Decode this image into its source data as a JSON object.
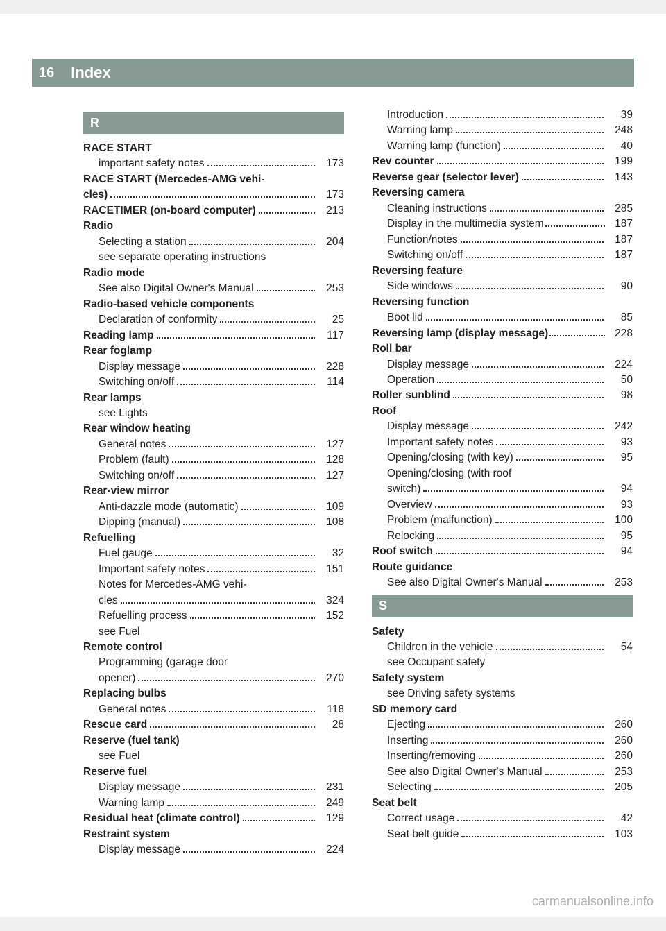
{
  "header": {
    "page_num": "16",
    "title": "Index"
  },
  "colors": {
    "bar_bg": "#889a94",
    "bar_fg": "#ffffff",
    "text": "#222222",
    "page_bg": "#ffffff"
  },
  "watermark": "carmanualsonline.info",
  "sections": {
    "R": {
      "letter": "R"
    },
    "S": {
      "letter": "S"
    }
  },
  "left_col": [
    {
      "type": "section",
      "key": "R"
    },
    {
      "label": "RACE START",
      "bold": true,
      "nonum": true
    },
    {
      "label": "important safety notes",
      "sub": true,
      "page": "173"
    },
    {
      "label": "RACE START (Mercedes-AMG vehi-",
      "bold": true,
      "nonum": true,
      "cont": true
    },
    {
      "label": "cles)",
      "bold": true,
      "page": "173"
    },
    {
      "label": "RACETIMER (on-board computer)",
      "bold": true,
      "page": "213"
    },
    {
      "label": "Radio",
      "bold": true,
      "nonum": true
    },
    {
      "label": "Selecting a station",
      "sub": true,
      "page": "204"
    },
    {
      "label": "see separate operating instructions",
      "sub": true,
      "nonum": true
    },
    {
      "label": "Radio mode",
      "bold": true,
      "nonum": true
    },
    {
      "label": "See also Digital Owner's Manual",
      "sub": true,
      "page": "253"
    },
    {
      "label": "Radio-based vehicle components",
      "bold": true,
      "nonum": true
    },
    {
      "label": "Declaration of conformity",
      "sub": true,
      "page": "25"
    },
    {
      "label": "Reading lamp",
      "bold": true,
      "page": "117"
    },
    {
      "label": "Rear foglamp",
      "bold": true,
      "nonum": true
    },
    {
      "label": "Display message",
      "sub": true,
      "page": "228"
    },
    {
      "label": "Switching on/off",
      "sub": true,
      "page": "114"
    },
    {
      "label": "Rear lamps",
      "bold": true,
      "nonum": true
    },
    {
      "label": "see Lights",
      "sub": true,
      "nonum": true
    },
    {
      "label": "Rear window heating",
      "bold": true,
      "nonum": true
    },
    {
      "label": "General notes",
      "sub": true,
      "page": "127"
    },
    {
      "label": "Problem (fault)",
      "sub": true,
      "page": "128"
    },
    {
      "label": "Switching on/off",
      "sub": true,
      "page": "127"
    },
    {
      "label": "Rear-view mirror",
      "bold": true,
      "nonum": true
    },
    {
      "label": "Anti-dazzle mode (automatic)",
      "sub": true,
      "page": "109"
    },
    {
      "label": "Dipping (manual)",
      "sub": true,
      "page": "108"
    },
    {
      "label": "Refuelling",
      "bold": true,
      "nonum": true
    },
    {
      "label": "Fuel gauge",
      "sub": true,
      "page": "32"
    },
    {
      "label": "Important safety notes",
      "sub": true,
      "page": "151"
    },
    {
      "label": "Notes for Mercedes-AMG vehi-",
      "sub": true,
      "nonum": true,
      "cont": true
    },
    {
      "label": "cles",
      "sub": true,
      "page": "324"
    },
    {
      "label": "Refuelling process",
      "sub": true,
      "page": "152"
    },
    {
      "label": "see Fuel",
      "sub": true,
      "nonum": true
    },
    {
      "label": "Remote control",
      "bold": true,
      "nonum": true
    },
    {
      "label": "Programming (garage door",
      "sub": true,
      "nonum": true,
      "cont": true
    },
    {
      "label": "opener)",
      "sub": true,
      "page": "270"
    },
    {
      "label": "Replacing bulbs",
      "bold": true,
      "nonum": true
    },
    {
      "label": "General notes",
      "sub": true,
      "page": "118"
    },
    {
      "label": "Rescue card",
      "bold": true,
      "page": "28"
    },
    {
      "label": "Reserve (fuel tank)",
      "bold": true,
      "nonum": true
    },
    {
      "label": "see Fuel",
      "sub": true,
      "nonum": true
    },
    {
      "label": "Reserve fuel",
      "bold": true,
      "nonum": true
    },
    {
      "label": "Display message",
      "sub": true,
      "page": "231"
    },
    {
      "label": "Warning lamp",
      "sub": true,
      "page": "249"
    },
    {
      "label": "Residual heat (climate control)",
      "bold": true,
      "page": "129"
    },
    {
      "label": "Restraint system",
      "bold": true,
      "nonum": true
    },
    {
      "label": "Display message",
      "sub": true,
      "page": "224"
    }
  ],
  "right_col": [
    {
      "label": "Introduction",
      "sub": true,
      "page": "39"
    },
    {
      "label": "Warning lamp",
      "sub": true,
      "page": "248"
    },
    {
      "label": "Warning lamp (function)",
      "sub": true,
      "page": "40"
    },
    {
      "label": "Rev counter",
      "bold": true,
      "page": "199"
    },
    {
      "label": "Reverse gear (selector lever)",
      "bold": true,
      "page": "143"
    },
    {
      "label": "Reversing camera",
      "bold": true,
      "nonum": true
    },
    {
      "label": "Cleaning instructions",
      "sub": true,
      "page": "285"
    },
    {
      "label": "Display in the multimedia system",
      "sub": true,
      "page": "187",
      "tight": true
    },
    {
      "label": "Function/notes",
      "sub": true,
      "page": "187"
    },
    {
      "label": "Switching on/off",
      "sub": true,
      "page": "187"
    },
    {
      "label": "Reversing feature",
      "bold": true,
      "nonum": true
    },
    {
      "label": "Side windows",
      "sub": true,
      "page": "90"
    },
    {
      "label": "Reversing function",
      "bold": true,
      "nonum": true
    },
    {
      "label": "Boot lid",
      "sub": true,
      "page": "85"
    },
    {
      "label": "Reversing lamp (display message)",
      "bold": true,
      "page": "228",
      "tight": true
    },
    {
      "label": "Roll bar",
      "bold": true,
      "nonum": true
    },
    {
      "label": "Display message",
      "sub": true,
      "page": "224"
    },
    {
      "label": "Operation",
      "sub": true,
      "page": "50"
    },
    {
      "label": "Roller sunblind",
      "bold": true,
      "page": "98"
    },
    {
      "label": "Roof",
      "bold": true,
      "nonum": true
    },
    {
      "label": "Display message",
      "sub": true,
      "page": "242"
    },
    {
      "label": "Important safety notes",
      "sub": true,
      "page": "93"
    },
    {
      "label": "Opening/closing (with key)",
      "sub": true,
      "page": "95"
    },
    {
      "label": "Opening/closing (with roof",
      "sub": true,
      "nonum": true,
      "cont": true
    },
    {
      "label": "switch)",
      "sub": true,
      "page": "94"
    },
    {
      "label": "Overview",
      "sub": true,
      "page": "93"
    },
    {
      "label": "Problem (malfunction)",
      "sub": true,
      "page": "100"
    },
    {
      "label": "Relocking",
      "sub": true,
      "page": "95"
    },
    {
      "label": "Roof switch",
      "bold": true,
      "page": "94"
    },
    {
      "label": "Route guidance",
      "bold": true,
      "nonum": true
    },
    {
      "label": "See also Digital Owner's Manual",
      "sub": true,
      "page": "253"
    },
    {
      "type": "section",
      "key": "S"
    },
    {
      "label": "Safety",
      "bold": true,
      "nonum": true
    },
    {
      "label": "Children in the vehicle",
      "sub": true,
      "page": "54"
    },
    {
      "label": "see Occupant safety",
      "sub": true,
      "nonum": true
    },
    {
      "label": "Safety system",
      "bold": true,
      "nonum": true
    },
    {
      "label": "see Driving safety systems",
      "sub": true,
      "nonum": true
    },
    {
      "label": "SD memory card",
      "bold": true,
      "nonum": true
    },
    {
      "label": "Ejecting",
      "sub": true,
      "page": "260"
    },
    {
      "label": "Inserting",
      "sub": true,
      "page": "260"
    },
    {
      "label": "Inserting/removing",
      "sub": true,
      "page": "260"
    },
    {
      "label": "See also Digital Owner's Manual",
      "sub": true,
      "page": "253"
    },
    {
      "label": "Selecting",
      "sub": true,
      "page": "205"
    },
    {
      "label": "Seat belt",
      "bold": true,
      "nonum": true
    },
    {
      "label": "Correct usage",
      "sub": true,
      "page": "42"
    },
    {
      "label": "Seat belt guide",
      "sub": true,
      "page": "103"
    }
  ]
}
